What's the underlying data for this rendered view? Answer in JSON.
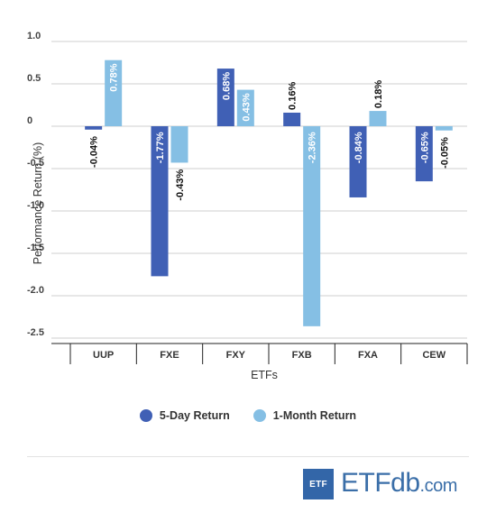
{
  "chart_data": {
    "type": "bar",
    "categories": [
      "UUP",
      "FXE",
      "FXY",
      "FXB",
      "FXA",
      "CEW"
    ],
    "series": [
      {
        "name": "5-Day Return",
        "color": "#4060b5",
        "values": [
          -0.04,
          -1.77,
          0.68,
          0.16,
          -0.84,
          -0.65
        ],
        "labels": [
          "-0.04%",
          "-1.77%",
          "0.68%",
          "0.16%",
          "-0.84%",
          "-0.65%"
        ]
      },
      {
        "name": "1-Month Return",
        "color": "#85bfe4",
        "values": [
          0.78,
          -0.43,
          0.43,
          -2.36,
          0.18,
          -0.05
        ],
        "labels": [
          "0.78%",
          "-0.43%",
          "0.43%",
          "-2.36%",
          "0.18%",
          "-0.05%"
        ]
      }
    ],
    "xlabel": "ETFs",
    "ylabel": "Performance Return (%)",
    "ylim": [
      -2.5,
      1.0
    ],
    "yticks": [
      1.0,
      0.5,
      0,
      -0.5,
      -1.0,
      -1.5,
      -2.0,
      -2.5
    ],
    "ytick_labels": [
      "1.0",
      "0.5",
      "0",
      "-0.5",
      "-1.0",
      "-1.5",
      "-2.0",
      "-2.5"
    ],
    "grid": true,
    "legend_position": "bottom"
  },
  "legend": {
    "five_day": "5-Day Return",
    "one_month": "1-Month Return"
  },
  "logo": {
    "badge": "ETF",
    "brand_etf": "ETF",
    "brand_db": "db",
    "brand_com": ".com"
  }
}
